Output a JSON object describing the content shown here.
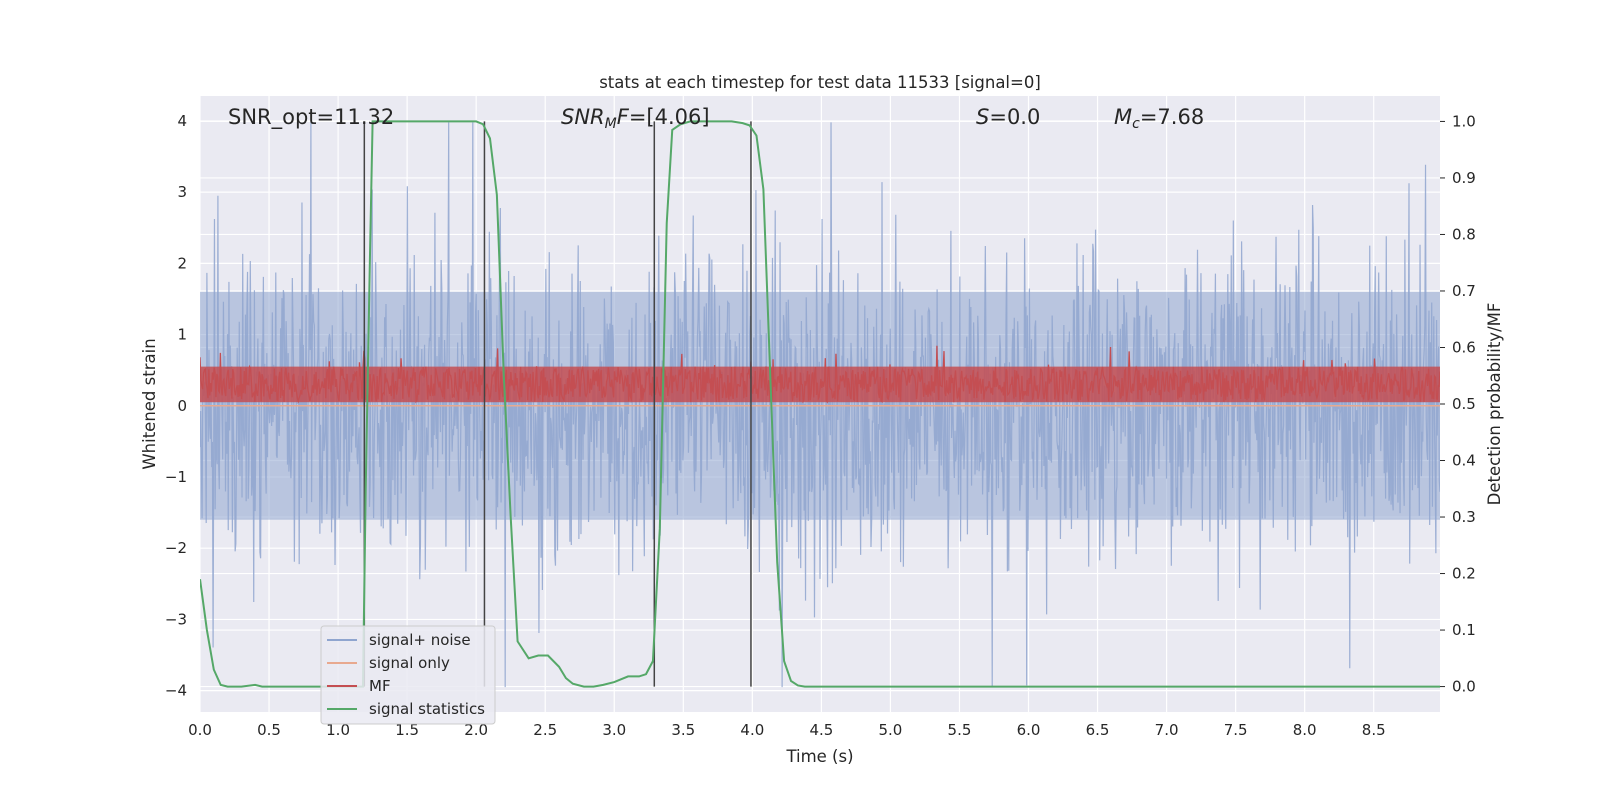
{
  "chart_data": {
    "type": "line",
    "title": "stats at each timestep for test data 11533 [signal=0]",
    "xlabel": "Time (s)",
    "ylabel_left": "Whitened strain",
    "ylabel_right": "Detection probability/MF",
    "xlim": [
      0.0,
      8.98
    ],
    "ylim_left": [
      -4.3,
      4.35
    ],
    "ylim_right": [
      -0.045,
      1.045
    ],
    "x_ticks": [
      "0.0",
      "0.5",
      "1.0",
      "1.5",
      "2.0",
      "2.5",
      "3.0",
      "3.5",
      "4.0",
      "4.5",
      "5.0",
      "5.5",
      "6.0",
      "6.5",
      "7.0",
      "7.5",
      "8.0",
      "8.5"
    ],
    "y_ticks_left": [
      "4",
      "3",
      "2",
      "1",
      "0",
      "−1",
      "−2",
      "−3",
      "−4"
    ],
    "y_ticks_right": [
      "1.0",
      "0.9",
      "0.8",
      "0.7",
      "0.6",
      "0.5",
      "0.4",
      "0.3",
      "0.2",
      "0.1",
      "0.0"
    ],
    "grid": true,
    "legend_position": "lower-left",
    "annotations": {
      "snr_opt": "SNR_opt=11.32",
      "snr_mf_label": "SNR",
      "snr_mf_sub": "M",
      "snr_mf_f": "F",
      "snr_mf_value": "=[4.06]",
      "s_label": "S",
      "s_value": "=0.0",
      "mc_label": "M",
      "mc_sub": "c",
      "mc_value": "=7.68"
    },
    "series": [
      {
        "name": "signal+ noise",
        "color": "#8fa5cf",
        "axis": "left",
        "noise_band": [
          -4.0,
          4.0
        ],
        "typical_range": [
          -1.6,
          1.6
        ]
      },
      {
        "name": "signal only",
        "color": "#e8a98f",
        "axis": "left",
        "values_constant": 0.0
      },
      {
        "name": "MF",
        "color": "#c44e52",
        "axis": "left",
        "typical_range": [
          0.0,
          0.6
        ]
      },
      {
        "name": "signal statistics",
        "color": "#55a868",
        "axis": "right",
        "x": [
          0.0,
          0.05,
          0.1,
          0.15,
          0.2,
          0.3,
          0.4,
          0.45,
          0.5,
          0.6,
          0.8,
          1.0,
          1.1,
          1.18,
          1.2,
          1.23,
          1.25,
          1.3,
          1.5,
          1.8,
          1.95,
          2.0,
          2.05,
          2.1,
          2.15,
          2.2,
          2.25,
          2.3,
          2.38,
          2.45,
          2.52,
          2.6,
          2.65,
          2.7,
          2.78,
          2.85,
          2.92,
          3.0,
          3.1,
          3.18,
          3.23,
          3.28,
          3.33,
          3.38,
          3.42,
          3.48,
          3.55,
          3.7,
          3.85,
          3.93,
          3.98,
          4.03,
          4.08,
          4.13,
          4.18,
          4.23,
          4.28,
          4.33,
          4.38,
          4.45,
          4.6,
          5.0,
          6.0,
          7.0,
          8.0,
          8.98
        ],
        "y": [
          0.19,
          0.1,
          0.03,
          0.003,
          0.0,
          0.0,
          0.003,
          0.0,
          0.0,
          0.0,
          0.0,
          0.0,
          0.0,
          0.0,
          0.35,
          0.75,
          1.0,
          1.0,
          1.0,
          1.0,
          1.0,
          1.0,
          0.995,
          0.97,
          0.87,
          0.55,
          0.3,
          0.08,
          0.05,
          0.055,
          0.055,
          0.035,
          0.015,
          0.005,
          0.0,
          0.0,
          0.003,
          0.008,
          0.018,
          0.018,
          0.022,
          0.045,
          0.28,
          0.82,
          0.985,
          0.995,
          1.0,
          1.0,
          1.0,
          0.997,
          0.993,
          0.975,
          0.88,
          0.55,
          0.22,
          0.045,
          0.01,
          0.002,
          0.0,
          0.0,
          0.0,
          0.0,
          0.0,
          0.0,
          0.0,
          0.0
        ]
      }
    ],
    "vertical_markers_x": [
      1.19,
      2.06,
      3.29,
      3.99
    ]
  }
}
